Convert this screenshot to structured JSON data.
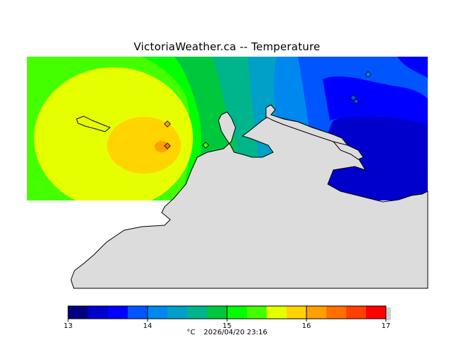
{
  "title": "VictoriaWeather.ca -- Temperature",
  "legend": {
    "ticks": [
      "13",
      "14",
      "15",
      "16",
      "17"
    ],
    "unit": "°C",
    "timestamp": "2026/04/20 23:16",
    "colors": [
      "#000080",
      "#0000cd",
      "#0000ff",
      "#0055ff",
      "#0088ee",
      "#00a0c8",
      "#00b48c",
      "#00c83c",
      "#00ff00",
      "#44ff00",
      "#e6ff00",
      "#ffd400",
      "#ffa000",
      "#ff7000",
      "#ff4000",
      "#ff0000"
    ]
  },
  "stations": [
    {
      "id": "station-1"
    },
    {
      "id": "station-2"
    },
    {
      "id": "station-3"
    },
    {
      "id": "station-4"
    },
    {
      "id": "station-5"
    },
    {
      "id": "station-6"
    }
  ]
}
